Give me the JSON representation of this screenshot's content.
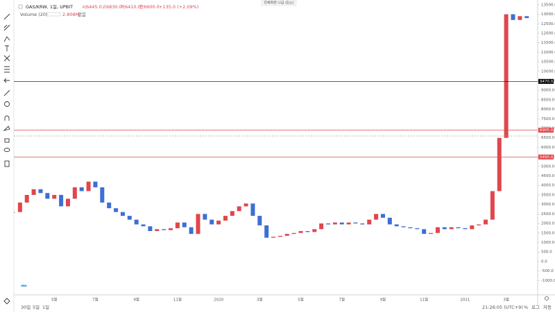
{
  "header": {
    "symbol": "GAS/KRW, 1일, UPBIT",
    "open": "시6445.0",
    "high": "고6830.0",
    "low": "저6410.0",
    "close": "종6600.0",
    "change": "+135.0 (+2.09%)",
    "volume": "Volume (20)",
    "volume_value": "2.808M",
    "volume_extra": "없음",
    "fullscreen": "전체화면 나감 (Esc)"
  },
  "footer": {
    "ranges": [
      "30일",
      "5일",
      "1일"
    ],
    "clock": "21:26:05 (UTC+9)",
    "percent": "%",
    "log": "로그",
    "auto": "자동"
  },
  "chart_data": {
    "type": "candlestick",
    "up_color": "#e0464d",
    "down_color": "#3d6fd4",
    "categories": [
      null,
      null,
      null,
      null,
      null,
      null,
      "5월",
      null,
      null,
      null,
      null,
      null,
      "7월",
      null,
      null,
      null,
      null,
      null,
      "9월",
      null,
      null,
      null,
      null,
      null,
      "11월",
      null,
      null,
      null,
      null,
      null,
      "2020",
      null,
      null,
      null,
      null,
      null,
      "3월",
      null,
      null,
      null,
      null,
      null,
      "5월",
      null,
      null,
      null,
      null,
      null,
      "7월",
      null,
      null,
      null,
      null,
      null,
      "9월",
      null,
      null,
      null,
      null,
      null,
      "11월",
      null,
      null,
      null,
      null,
      null,
      "2021",
      null,
      null,
      null,
      null,
      null,
      "3월",
      null,
      null,
      null
    ],
    "values": [
      2600,
      3100,
      3500,
      3800,
      3600,
      3300,
      3500,
      2900,
      3300,
      3900,
      3700,
      4200,
      3900,
      3100,
      2800,
      2600,
      2400,
      2200,
      1950,
      1850,
      1600,
      1700,
      1650,
      1750,
      2050,
      1800,
      1450,
      2500,
      2200,
      1950,
      2150,
      2400,
      2650,
      2900,
      3050,
      2400,
      1900,
      1250,
      1300,
      1350,
      1450,
      1500,
      1600,
      1550,
      1700,
      2000,
      1950,
      2050,
      1950,
      2050,
      2000,
      1950,
      2200,
      2500,
      2300,
      1950,
      1850,
      1800,
      1750,
      1700,
      1450,
      1500,
      1800,
      1700,
      1800,
      1750,
      1700,
      1900,
      1950,
      2200,
      3700,
      6500,
      13000,
      12700,
      12900,
      12800
    ],
    "ylim": [
      -1500,
      13750
    ],
    "yticks": [
      {
        "value": -1000,
        "label": "-1000.0"
      },
      {
        "value": -500,
        "label": "-500.0"
      },
      {
        "value": 0,
        "label": "0.0"
      },
      {
        "value": 500,
        "label": "500.0"
      },
      {
        "value": 1000,
        "label": "1000.0"
      },
      {
        "value": 1500,
        "label": "1500.0"
      },
      {
        "value": 2000,
        "label": "2000.0"
      },
      {
        "value": 2500,
        "label": "2500.0"
      },
      {
        "value": 3000,
        "label": "3000.0"
      },
      {
        "value": 3500,
        "label": "3500.0"
      },
      {
        "value": 4000,
        "label": "4000.0"
      },
      {
        "value": 4500,
        "label": "4500.0"
      },
      {
        "value": 5000,
        "label": "5000.0"
      },
      {
        "value": 5500,
        "label": "5500.0"
      },
      {
        "value": 6000,
        "label": "6000.0"
      },
      {
        "value": 6500,
        "label": "6500.0"
      },
      {
        "value": 7000,
        "label": "7000.0"
      },
      {
        "value": 7500,
        "label": "7500.0"
      },
      {
        "value": 8000,
        "label": "8000.0"
      },
      {
        "value": 8500,
        "label": "8500.0"
      },
      {
        "value": 9000,
        "label": "9000.0"
      },
      {
        "value": 9500,
        "label": "9500.0"
      },
      {
        "value": 10000,
        "label": "10000.0"
      },
      {
        "value": 10500,
        "label": "10500.0"
      },
      {
        "value": 11000,
        "label": "11000.0"
      },
      {
        "value": 11500,
        "label": "11500.0"
      },
      {
        "value": 12000,
        "label": "12000.0"
      },
      {
        "value": 12500,
        "label": "12500.0"
      },
      {
        "value": 13000,
        "label": "13000.0"
      },
      {
        "value": 13500,
        "label": "13500.0"
      }
    ],
    "price_lines": [
      {
        "value": 9470,
        "label": "9470.0",
        "color": "#000000",
        "dashed": false
      },
      {
        "value": 6905,
        "label": "6905.0",
        "color": "#e0464d",
        "dashed": false
      },
      {
        "value": 5495,
        "label": "5495.0",
        "color": "#e0464d",
        "dashed": false
      },
      {
        "value": 6600,
        "color": "#9aa0aa",
        "dashed": true
      }
    ]
  }
}
